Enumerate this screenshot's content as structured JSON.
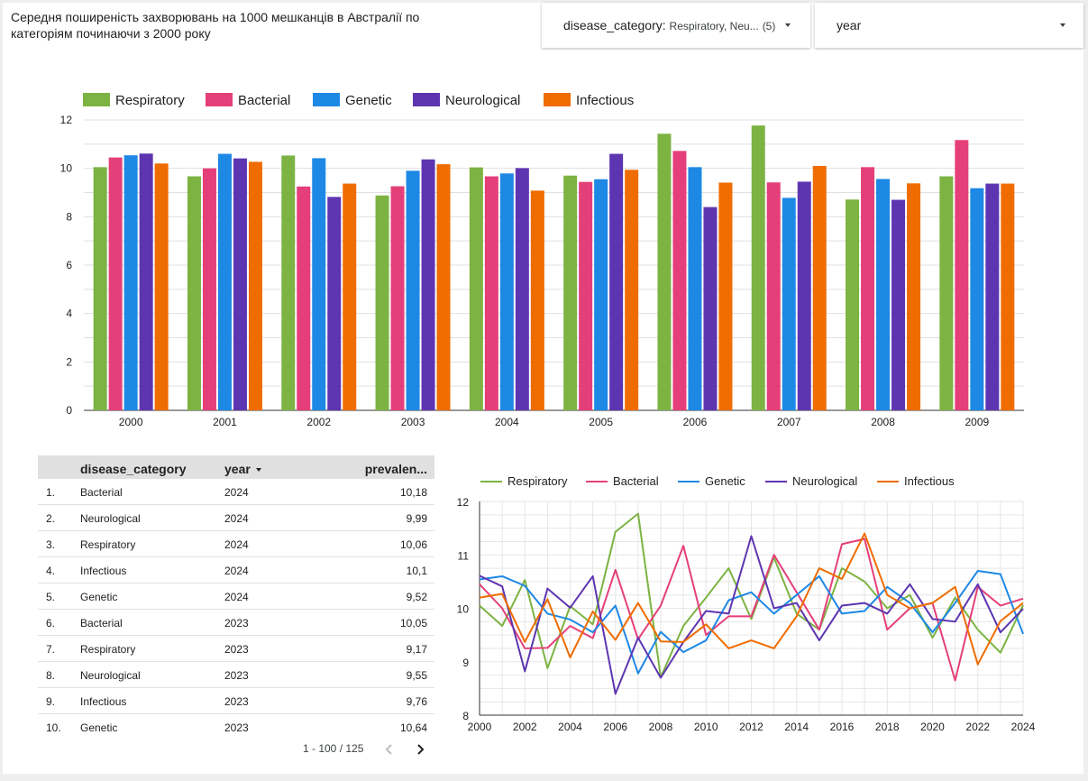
{
  "report": {
    "title": "Середня поширеність захворювань на 1000 мешканців в Австралії по категоріям починаючи з 2000 року"
  },
  "filters": {
    "disease_category": {
      "label": "disease_category",
      "value": "Respiratory, Neu...",
      "count": "(5)"
    },
    "year": {
      "label": "year"
    }
  },
  "colors": {
    "Respiratory": "#7cb342",
    "Bacterial": "#e53f7a",
    "Genetic": "#1e88e5",
    "Neurological": "#5e35b1",
    "Infectious": "#ef6c00"
  },
  "table": {
    "headers": {
      "category": "disease_category",
      "year": "year",
      "prevalence": "prevalen..."
    },
    "rows": [
      {
        "num": "1.",
        "category": "Bacterial",
        "year": "2024",
        "prevalence": "10,18"
      },
      {
        "num": "2.",
        "category": "Neurological",
        "year": "2024",
        "prevalence": "9,99"
      },
      {
        "num": "3.",
        "category": "Respiratory",
        "year": "2024",
        "prevalence": "10,06"
      },
      {
        "num": "4.",
        "category": "Infectious",
        "year": "2024",
        "prevalence": "10,1"
      },
      {
        "num": "5.",
        "category": "Genetic",
        "year": "2024",
        "prevalence": "9,52"
      },
      {
        "num": "6.",
        "category": "Bacterial",
        "year": "2023",
        "prevalence": "10,05"
      },
      {
        "num": "7.",
        "category": "Respiratory",
        "year": "2023",
        "prevalence": "9,17"
      },
      {
        "num": "8.",
        "category": "Neurological",
        "year": "2023",
        "prevalence": "9,55"
      },
      {
        "num": "9.",
        "category": "Infectious",
        "year": "2023",
        "prevalence": "9,76"
      },
      {
        "num": "10.",
        "category": "Genetic",
        "year": "2023",
        "prevalence": "10,64"
      }
    ],
    "pagination": "1 - 100 / 125"
  },
  "chart_data": [
    {
      "type": "bar",
      "title": "",
      "xlabel": "",
      "ylabel": "",
      "legend_position": "top-left",
      "grid": true,
      "ylim": [
        0,
        12
      ],
      "yticks": [
        "0",
        "2",
        "4",
        "6",
        "8",
        "10",
        "12"
      ],
      "categories": [
        "2000",
        "2001",
        "2002",
        "2003",
        "2004",
        "2005",
        "2006",
        "2007",
        "2008",
        "2009"
      ],
      "series": [
        {
          "name": "Respiratory",
          "values": [
            10.05,
            9.67,
            10.53,
            8.88,
            10.04,
            9.7,
            11.43,
            11.77,
            8.71,
            9.67
          ]
        },
        {
          "name": "Bacterial",
          "values": [
            10.45,
            10.0,
            9.25,
            9.26,
            9.67,
            9.44,
            10.72,
            9.42,
            10.05,
            11.17
          ]
        },
        {
          "name": "Genetic",
          "values": [
            10.54,
            10.6,
            10.42,
            9.9,
            9.79,
            9.55,
            10.05,
            8.78,
            9.56,
            9.18
          ]
        },
        {
          "name": "Neurological",
          "values": [
            10.61,
            10.41,
            8.82,
            10.37,
            10.01,
            10.6,
            8.4,
            9.45,
            8.7,
            9.37
          ]
        },
        {
          "name": "Infectious",
          "values": [
            10.2,
            10.27,
            9.37,
            10.17,
            9.08,
            9.94,
            9.41,
            10.1,
            9.38,
            9.37
          ]
        }
      ]
    },
    {
      "type": "line",
      "title": "",
      "xlabel": "",
      "ylabel": "",
      "legend_position": "top",
      "grid": true,
      "ylim": [
        8,
        12
      ],
      "xlim": [
        2000,
        2024
      ],
      "yticks": [
        "8",
        "9",
        "10",
        "11",
        "12"
      ],
      "xticks": [
        "2000",
        "2002",
        "2004",
        "2006",
        "2008",
        "2010",
        "2012",
        "2014",
        "2016",
        "2018",
        "2020",
        "2022",
        "2024"
      ],
      "x": [
        2000,
        2001,
        2002,
        2003,
        2004,
        2005,
        2006,
        2007,
        2008,
        2009,
        2010,
        2011,
        2012,
        2013,
        2014,
        2015,
        2016,
        2017,
        2018,
        2019,
        2020,
        2021,
        2022,
        2023,
        2024
      ],
      "series": [
        {
          "name": "Respiratory",
          "values": [
            10.05,
            9.67,
            10.53,
            8.88,
            10.04,
            9.7,
            11.43,
            11.77,
            8.71,
            9.67,
            10.2,
            10.75,
            9.8,
            10.95,
            9.9,
            9.6,
            10.75,
            10.5,
            10.0,
            10.25,
            9.45,
            10.2,
            9.6,
            9.17,
            10.06
          ]
        },
        {
          "name": "Bacterial",
          "values": [
            10.45,
            10.0,
            9.25,
            9.26,
            9.67,
            9.44,
            10.72,
            9.42,
            10.05,
            11.17,
            9.5,
            9.85,
            9.85,
            11.0,
            10.3,
            9.6,
            11.2,
            11.3,
            9.6,
            10.0,
            10.1,
            8.65,
            10.4,
            10.05,
            10.18
          ]
        },
        {
          "name": "Genetic",
          "values": [
            10.54,
            10.6,
            10.42,
            9.9,
            9.79,
            9.55,
            10.05,
            8.78,
            9.56,
            9.18,
            9.4,
            10.15,
            10.3,
            9.9,
            10.25,
            10.6,
            9.9,
            9.95,
            10.4,
            10.1,
            9.55,
            10.1,
            10.7,
            10.64,
            9.52
          ]
        },
        {
          "name": "Neurological",
          "values": [
            10.61,
            10.41,
            8.82,
            10.37,
            10.01,
            10.6,
            8.4,
            9.45,
            8.7,
            9.37,
            9.95,
            9.9,
            11.35,
            10.0,
            10.1,
            9.4,
            10.05,
            10.1,
            9.9,
            10.45,
            9.8,
            9.75,
            10.45,
            9.55,
            9.99
          ]
        },
        {
          "name": "Infectious",
          "values": [
            10.2,
            10.27,
            9.37,
            10.17,
            9.08,
            9.94,
            9.41,
            10.1,
            9.38,
            9.37,
            9.7,
            9.25,
            9.4,
            9.25,
            9.85,
            10.75,
            10.55,
            11.4,
            10.25,
            10.0,
            10.1,
            10.4,
            8.95,
            9.76,
            10.1
          ]
        }
      ]
    }
  ]
}
